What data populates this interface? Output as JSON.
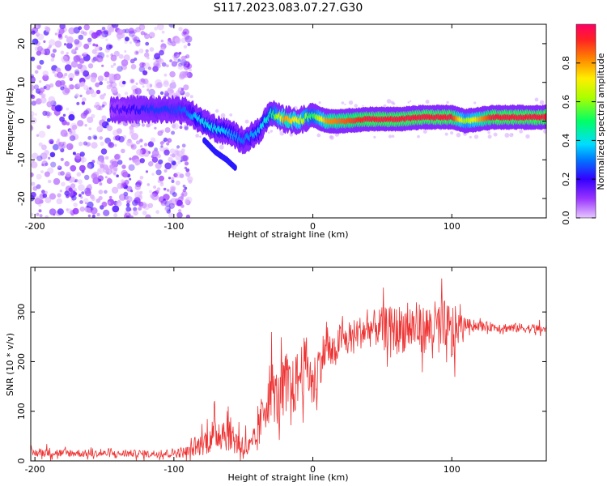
{
  "title": "S117.2023.083.07.27.G30",
  "chart_data": [
    {
      "type": "heatmap",
      "xlabel": "Height of straight line (km)",
      "ylabel": "Frequency (Hz)",
      "xlim": [
        -203,
        168
      ],
      "ylim": [
        -25,
        25
      ],
      "xticks": [
        -200,
        -100,
        0,
        100
      ],
      "xtick_labels": [
        "-200",
        "-100",
        "0",
        "100"
      ],
      "yticks": [
        -20,
        -10,
        0,
        10,
        20
      ],
      "ytick_labels": [
        "-20",
        "-10",
        "0",
        "10",
        "20"
      ],
      "colorbar": {
        "label": "Normalized spectral amplitude",
        "range": [
          0,
          1
        ],
        "ticks": [
          0.0,
          0.2,
          0.4,
          0.6,
          0.8
        ],
        "tick_labels": [
          "0.0",
          "0.2",
          "0.4",
          "0.6",
          "0.8"
        ],
        "colormap": "hsv",
        "colors": [
          "#cc88ff",
          "#3300ff",
          "#00ccff",
          "#00ff66",
          "#ffee00",
          "#ff8800",
          "#ff0044"
        ]
      },
      "ridge": {
        "x": [
          -145,
          -130,
          -115,
          -100,
          -90,
          -80,
          -70,
          -60,
          -50,
          -40,
          -30,
          -20,
          -10,
          0,
          10,
          20,
          40,
          60,
          80,
          100,
          110,
          130,
          150,
          168
        ],
        "y": [
          3,
          3,
          3,
          3,
          2.5,
          0,
          -2,
          -3,
          -5,
          -3,
          2,
          0.5,
          0,
          1.5,
          0,
          0,
          0.5,
          0.5,
          1,
          1,
          0,
          1,
          1,
          1
        ],
        "amplitude": [
          0.15,
          0.2,
          0.25,
          0.25,
          0.3,
          0.4,
          0.4,
          0.35,
          0.3,
          0.35,
          0.45,
          0.8,
          0.7,
          0.5,
          0.8,
          0.85,
          0.95,
          0.95,
          0.95,
          0.95,
          0.6,
          0.95,
          0.95,
          0.95
        ]
      },
      "secondary_branch": {
        "x": [
          -78,
          -70,
          -62,
          -56
        ],
        "y": [
          -5,
          -8,
          -10,
          -12
        ]
      },
      "noise_region_x": [
        -203,
        -88
      ]
    },
    {
      "type": "line",
      "xlabel": "Height of straight line (km)",
      "ylabel": "SNR (10 * v/v)",
      "xlim": [
        -203,
        168
      ],
      "ylim": [
        0,
        390
      ],
      "xticks": [
        -200,
        -100,
        0,
        100
      ],
      "xtick_labels": [
        "-200",
        "-100",
        "0",
        "100"
      ],
      "yticks": [
        0,
        100,
        200,
        300
      ],
      "ytick_labels": [
        "0",
        "100",
        "200",
        "300"
      ],
      "color": "#ee3333",
      "series": [
        {
          "x": [
            -203,
            -190,
            -180,
            -170,
            -160,
            -150,
            -140,
            -130,
            -120,
            -110,
            -100,
            -90,
            -85,
            -80,
            -75,
            -70,
            -65,
            -60,
            -55,
            -50,
            -45,
            -40,
            -35,
            -30,
            -25,
            -20,
            -15,
            -10,
            -5,
            0,
            5,
            10,
            15,
            20,
            25,
            30,
            40,
            50,
            60,
            70,
            80,
            90,
            100,
            105,
            110,
            120,
            130,
            140,
            150,
            160,
            168
          ],
          "y": [
            15,
            18,
            15,
            16,
            14,
            15,
            14,
            15,
            14,
            15,
            16,
            18,
            25,
            35,
            45,
            55,
            60,
            55,
            40,
            30,
            25,
            45,
            110,
            150,
            120,
            160,
            140,
            170,
            200,
            150,
            200,
            230,
            210,
            250,
            240,
            255,
            265,
            270,
            265,
            270,
            265,
            270,
            250,
            270,
            275,
            272,
            270,
            268,
            268,
            266,
            265
          ],
          "noise_amplitude": [
            10,
            12,
            10,
            10,
            9,
            9,
            9,
            9,
            9,
            10,
            12,
            15,
            20,
            30,
            40,
            45,
            50,
            45,
            40,
            35,
            30,
            40,
            70,
            80,
            70,
            80,
            75,
            75,
            70,
            70,
            60,
            50,
            45,
            40,
            40,
            40,
            45,
            50,
            60,
            65,
            60,
            70,
            90,
            40,
            15,
            12,
            12,
            12,
            12,
            12,
            12
          ]
        }
      ]
    }
  ]
}
